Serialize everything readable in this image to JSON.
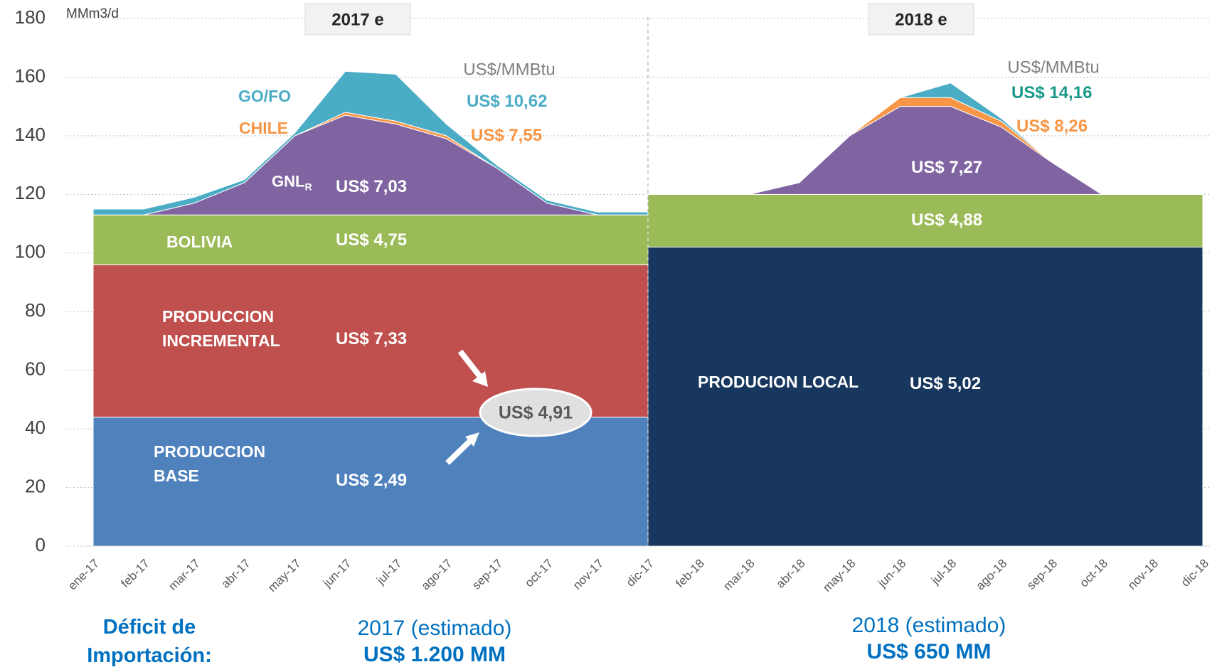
{
  "chart_data": {
    "type": "stacked_area",
    "y_label": "MMm3/d",
    "categories": [
      "ene-17",
      "feb-17",
      "mar-17",
      "abr-17",
      "may-17",
      "jun-17",
      "jul-17",
      "ago-17",
      "sep-17",
      "oct-17",
      "nov-17",
      "dic-17",
      "feb-18",
      "mar-18",
      "abr-18",
      "may-18",
      "jun-18",
      "jul-18",
      "ago-18",
      "sep-18",
      "oct-18",
      "nov-18",
      "dic-18"
    ],
    "ylim": [
      0,
      180
    ],
    "yticks": [
      0,
      20,
      40,
      60,
      80,
      100,
      120,
      140,
      160,
      180
    ],
    "grid": true,
    "panels": [
      {
        "title": "2017 e",
        "unit_label": "US$/MMBtu",
        "footer_period": "2017 (estimado)",
        "footer_value": "US$ 1.200 MM",
        "series": [
          {
            "name": "PRODUCCION BASE",
            "color": "#4f81bd",
            "label_color": "#ffffff",
            "price_label": "US$ 2,49",
            "values": [
              44,
              44,
              44,
              44,
              44,
              44,
              44,
              44,
              44,
              44,
              44,
              44,
              null,
              null,
              null,
              null,
              null,
              null,
              null,
              null,
              null,
              null,
              null
            ]
          },
          {
            "name": "PRODUCCION INCREMENTAL",
            "color": "#c0504d",
            "label_color": "#ffffff",
            "price_label": "US$ 7,33",
            "values": [
              52,
              52,
              52,
              52,
              52,
              52,
              52,
              52,
              52,
              52,
              52,
              52,
              null,
              null,
              null,
              null,
              null,
              null,
              null,
              null,
              null,
              null,
              null
            ]
          },
          {
            "name": "BOLIVIA",
            "color": "#9bbb59",
            "label_color": "#ffffff",
            "price_label": "US$ 4,75",
            "values": [
              17,
              17,
              17,
              17,
              17,
              17,
              17,
              17,
              17,
              17,
              17,
              17,
              null,
              null,
              null,
              null,
              null,
              null,
              null,
              null,
              null,
              null,
              null
            ]
          },
          {
            "name": "GNL",
            "subscript": "R",
            "color": "#8064a2",
            "label_color": "#ffffff",
            "price_label": "US$ 7,03",
            "values": [
              0,
              0,
              4,
              11,
              27,
              34,
              31,
              26,
              16,
              4,
              0,
              0,
              null,
              null,
              null,
              null,
              null,
              null,
              null,
              null,
              null,
              null,
              null
            ]
          },
          {
            "name": "CHILE",
            "color": "#f79646",
            "label_color": "#f79646",
            "price_label": "US$ 7,55",
            "values": [
              0,
              0,
              0,
              0,
              0,
              1,
              1,
              1,
              0,
              0,
              0,
              0,
              null,
              null,
              null,
              null,
              null,
              null,
              null,
              null,
              null,
              null,
              null
            ]
          },
          {
            "name": "GO/FO",
            "color": "#4bacc6",
            "label_color": "#4bacc6",
            "price_label": "US$ 10,62",
            "values": [
              2,
              2,
              2,
              1,
              1,
              14,
              16,
              4,
              1,
              1,
              1,
              1,
              null,
              null,
              null,
              null,
              null,
              null,
              null,
              null,
              null,
              null,
              null
            ]
          }
        ]
      },
      {
        "title": "2018 e",
        "unit_label": "US$/MMBtu",
        "footer_period": "2018 (estimado)",
        "footer_value": "US$ 650 MM",
        "series": [
          {
            "name": "PRODUCION LOCAL",
            "color": "#17375e",
            "label_color": "#ffffff",
            "price_label": "US$ 5,02",
            "values": [
              null,
              null,
              null,
              null,
              null,
              null,
              null,
              null,
              null,
              null,
              null,
              102,
              102,
              102,
              102,
              102,
              102,
              102,
              102,
              102,
              102,
              102,
              102
            ]
          },
          {
            "color": "#9bbb59",
            "label_color": "#ffffff",
            "price_label": "US$ 4,88",
            "values": [
              null,
              null,
              null,
              null,
              null,
              null,
              null,
              null,
              null,
              null,
              null,
              18,
              18,
              18,
              18,
              18,
              18,
              18,
              18,
              18,
              18,
              18,
              18
            ]
          },
          {
            "color": "#8064a2",
            "label_color": "#ffffff",
            "price_label": "US$ 7,27",
            "values": [
              null,
              null,
              null,
              null,
              null,
              null,
              null,
              null,
              null,
              null,
              null,
              0,
              0,
              0,
              4,
              20,
              30,
              30,
              23,
              11,
              0,
              0,
              0
            ]
          },
          {
            "color": "#f79646",
            "label_color": "#f79646",
            "price_label": "US$ 8,26",
            "values": [
              null,
              null,
              null,
              null,
              null,
              null,
              null,
              null,
              null,
              null,
              null,
              0,
              0,
              0,
              0,
              0,
              3,
              3,
              2,
              0,
              0,
              0,
              0
            ]
          },
          {
            "color": "#4bacc6",
            "label_color": "#1a9a8a",
            "price_label": "US$ 14,16",
            "values": [
              null,
              null,
              null,
              null,
              null,
              null,
              null,
              null,
              null,
              null,
              null,
              0,
              0,
              0,
              0,
              0,
              0,
              5,
              1,
              0,
              0,
              0,
              0
            ]
          }
        ]
      }
    ],
    "callout": "US$ 4,91",
    "footer_title": "Déficit de Importación:"
  }
}
